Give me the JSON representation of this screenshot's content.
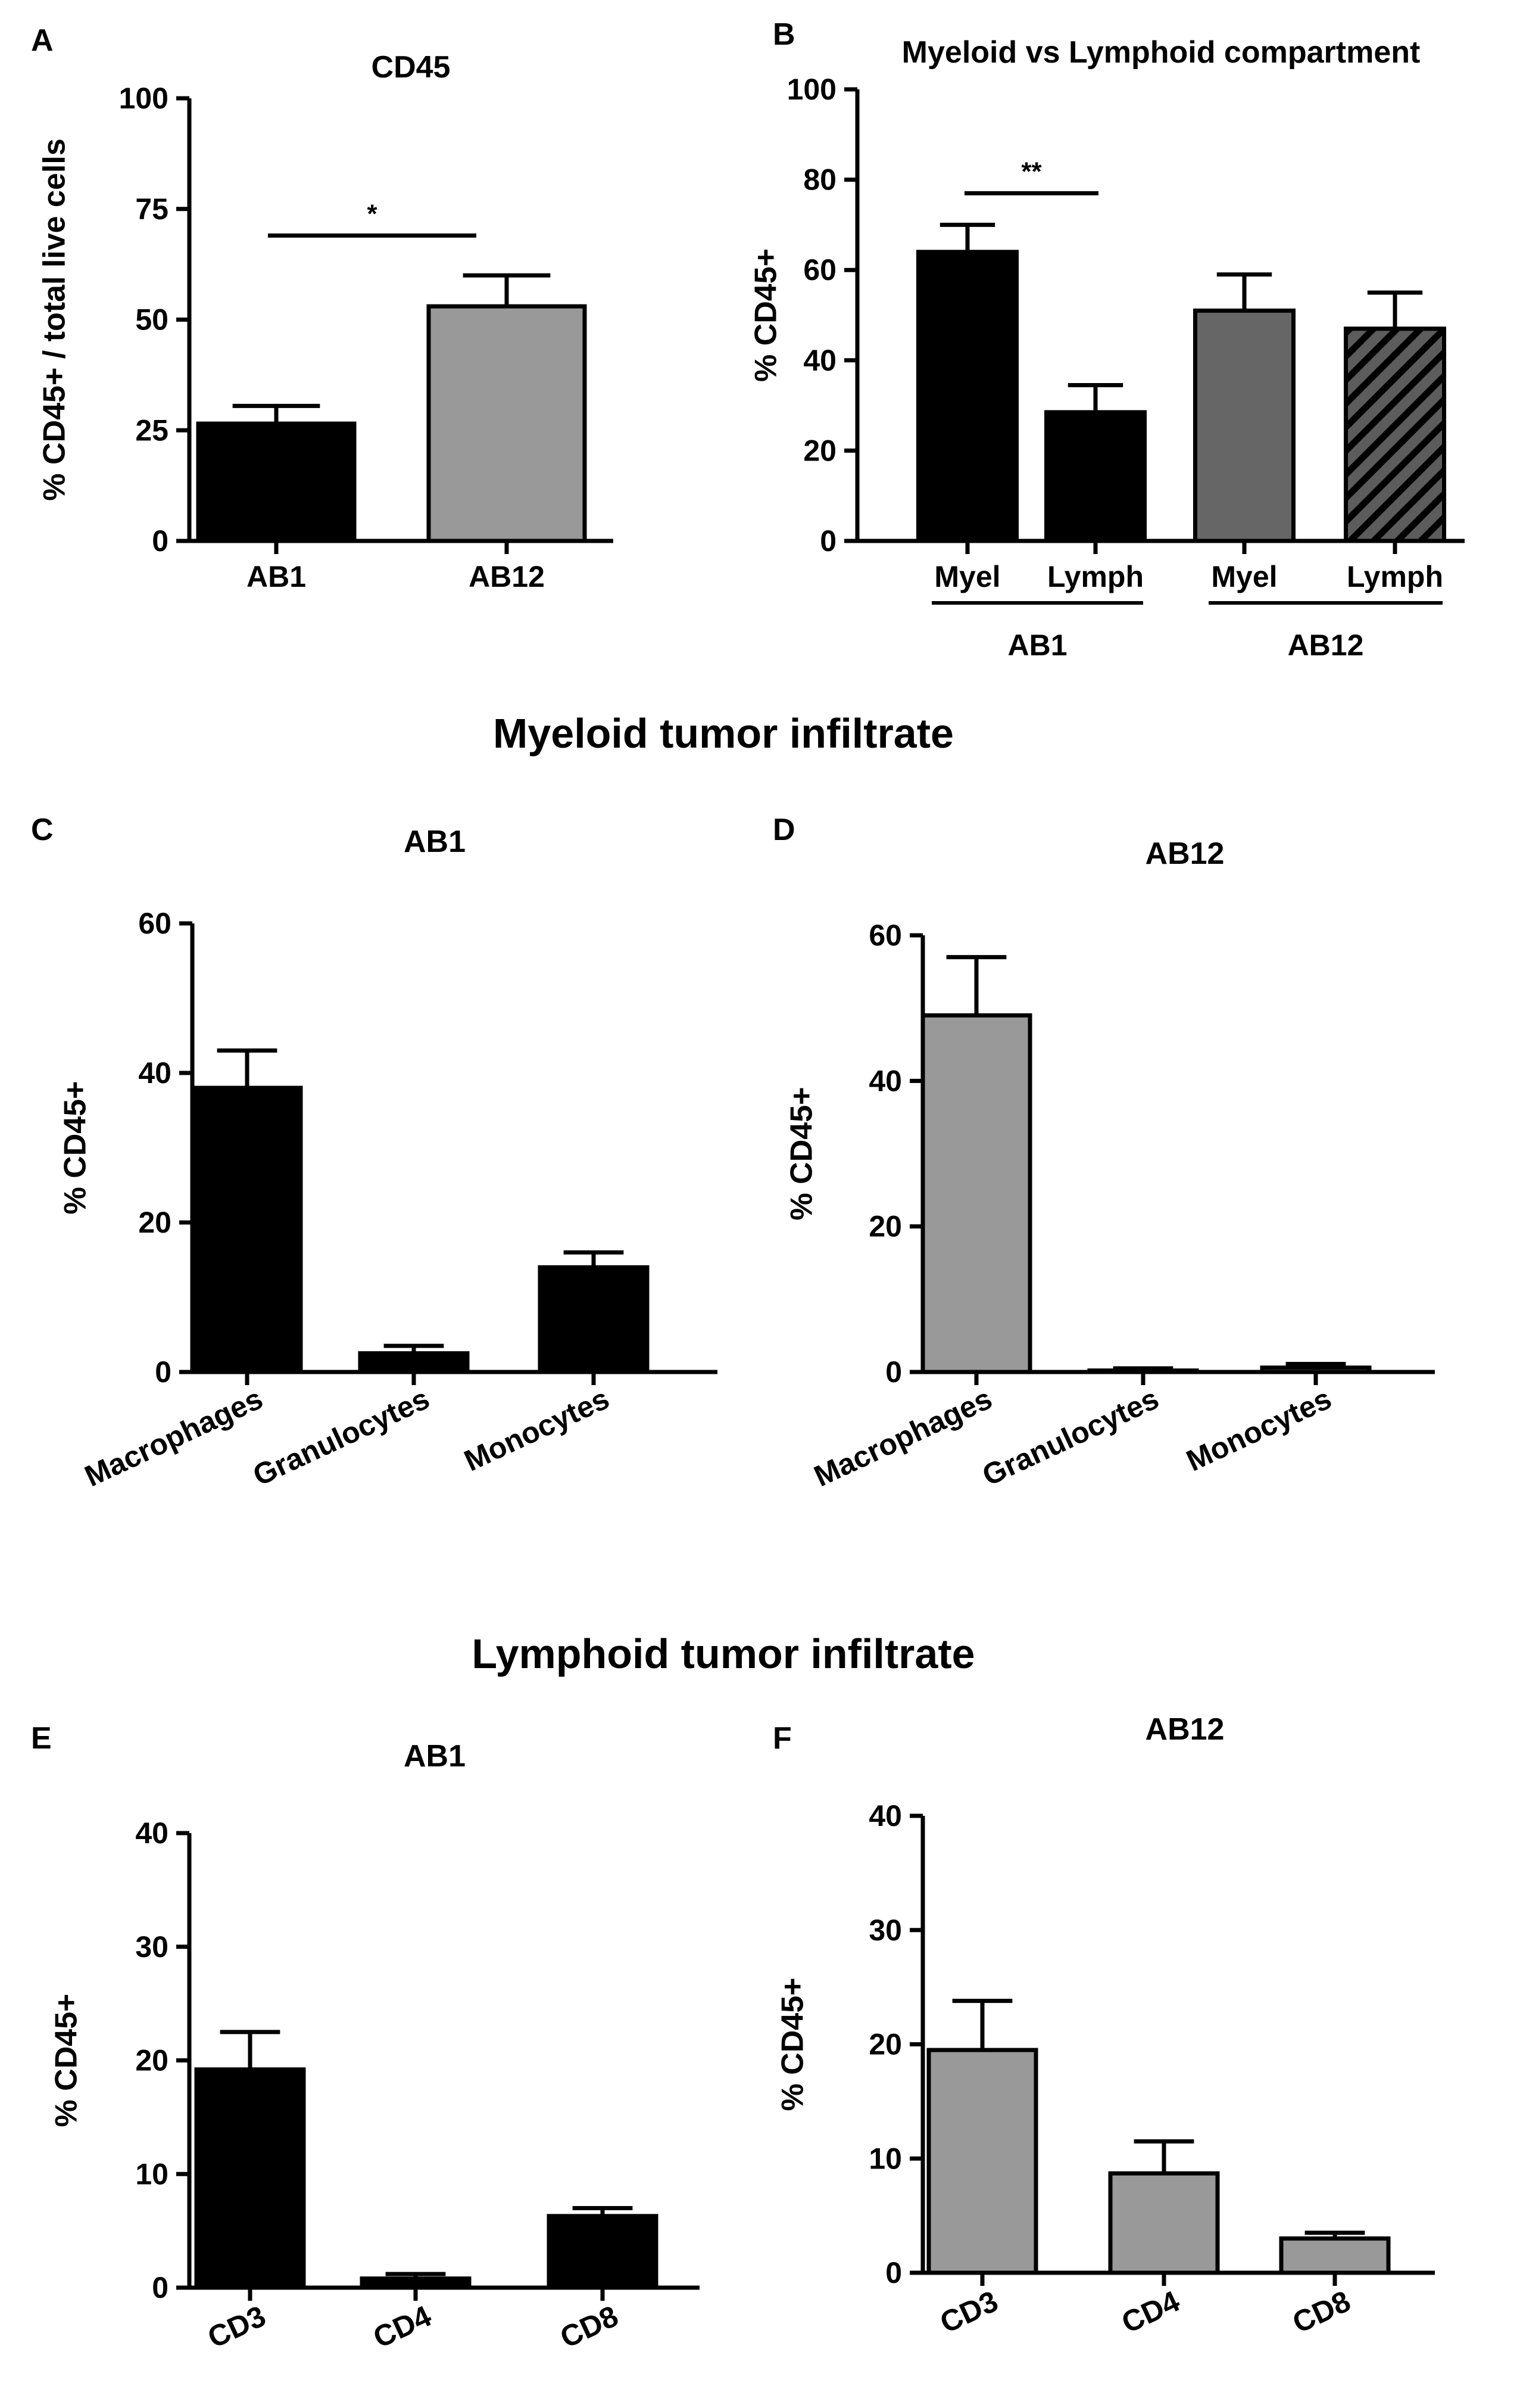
{
  "section_headings": {
    "myeloid": "Myeloid tumor infiltrate",
    "lymphoid": "Lymphoid tumor infiltrate"
  },
  "colors": {
    "black": "#000000",
    "light_gray": "#999999",
    "dark_gray": "#666666",
    "hatch_bg": "#5c5c5c"
  },
  "chart_data": [
    {
      "panel": "A",
      "type": "bar",
      "title": "CD45",
      "ylabel": "% CD45+ / total live cells",
      "xlabel": "",
      "ylim": [
        0,
        100
      ],
      "yticks": [
        0,
        25,
        50,
        75,
        100
      ],
      "categories": [
        "AB1",
        "AB12"
      ],
      "values": [
        26.5,
        53
      ],
      "errors": [
        4,
        7
      ],
      "bar_colors": [
        "#000000",
        "#999999"
      ],
      "significance": [
        {
          "label": "*",
          "from": 0,
          "to": 1,
          "y": 69
        }
      ]
    },
    {
      "panel": "B",
      "type": "bar",
      "title": "Myeloid vs Lymphoid compartment",
      "ylabel": "% CD45+",
      "xlabel": "",
      "ylim": [
        0,
        100
      ],
      "yticks": [
        0,
        20,
        40,
        60,
        80,
        100
      ],
      "categories": [
        "Myel",
        "Lymph",
        "Myel",
        "Lymph"
      ],
      "groups": [
        {
          "label": "AB1",
          "from": 0,
          "to": 1
        },
        {
          "label": "AB12",
          "from": 2,
          "to": 3
        }
      ],
      "values": [
        64,
        28.5,
        51,
        47
      ],
      "errors": [
        6,
        6,
        8,
        8
      ],
      "bar_colors": [
        "#000000",
        "#000000",
        "#666666",
        "hatch"
      ],
      "significance": [
        {
          "label": "**",
          "from": 0,
          "to": 1,
          "y": 77
        }
      ]
    },
    {
      "panel": "C",
      "type": "bar",
      "title": "AB1",
      "ylabel": "% CD45+",
      "xlabel": "",
      "ylim": [
        0,
        60
      ],
      "yticks": [
        0,
        20,
        40,
        60
      ],
      "categories": [
        "Macrophages",
        "Granulocytes",
        "Monocytes"
      ],
      "values": [
        38,
        2.5,
        14
      ],
      "errors": [
        5,
        1,
        2
      ],
      "bar_colors": [
        "#000000",
        "#000000",
        "#000000"
      ]
    },
    {
      "panel": "D",
      "type": "bar",
      "title": "AB12",
      "ylabel": "% CD45+",
      "xlabel": "",
      "ylim": [
        0,
        60
      ],
      "yticks": [
        0,
        20,
        40,
        60
      ],
      "categories": [
        "Macrophages",
        "Granulocytes",
        "Monocytes"
      ],
      "values": [
        49,
        0.2,
        0.6
      ],
      "errors": [
        8,
        0.3,
        0.5
      ],
      "bar_colors": [
        "#999999",
        "#999999",
        "#999999"
      ]
    },
    {
      "panel": "E",
      "type": "bar",
      "title": "AB1",
      "ylabel": "% CD45+",
      "xlabel": "",
      "ylim": [
        0,
        40
      ],
      "yticks": [
        0,
        10,
        20,
        30,
        40
      ],
      "categories": [
        "CD3",
        "CD4",
        "CD8"
      ],
      "values": [
        19.2,
        0.8,
        6.3
      ],
      "errors": [
        3.3,
        0.4,
        0.7
      ],
      "bar_colors": [
        "#000000",
        "#000000",
        "#000000"
      ]
    },
    {
      "panel": "F",
      "type": "bar",
      "title": "AB12",
      "ylabel": "% CD45+",
      "xlabel": "",
      "ylim": [
        0,
        40
      ],
      "yticks": [
        0,
        10,
        20,
        30,
        40
      ],
      "categories": [
        "CD3",
        "CD4",
        "CD8"
      ],
      "values": [
        19.5,
        8.7,
        3
      ],
      "errors": [
        4.3,
        2.8,
        0.5
      ],
      "bar_colors": [
        "#999999",
        "#999999",
        "#999999"
      ]
    }
  ]
}
